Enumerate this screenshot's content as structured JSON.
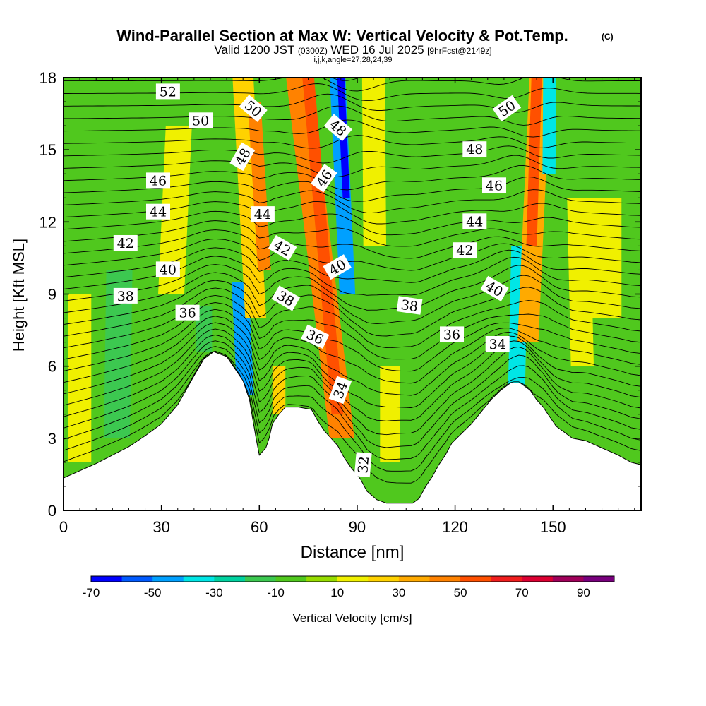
{
  "chart_data": {
    "type": "heatmap",
    "title": "Wind-Parallel Section at Max W: Vertical Velocity & Pot.Temp.",
    "title_mark": "(C)",
    "subtitle_parts": {
      "valid": "Valid 1200 JST",
      "utc": "(0300Z)",
      "date": "WED 16 Jul 2025",
      "fcst": "[9hrFcst@2149z]"
    },
    "subtitle2": "i,j,k,angle=27,28,24,39",
    "xlabel": "Distance [nm]",
    "ylabel": "Height [Kft MSL]",
    "xlim": [
      0,
      177
    ],
    "ylim": [
      0,
      18
    ],
    "x_ticks": [
      0,
      30,
      60,
      90,
      120,
      150
    ],
    "y_ticks": [
      0,
      3,
      6,
      9,
      12,
      15,
      18
    ],
    "colorbar": {
      "label": "Vertical Velocity [cm/s]",
      "range": [
        -70,
        100
      ],
      "step": 10,
      "tick_labels": [
        "-70",
        "-50",
        "-30",
        "-10",
        "10",
        "30",
        "50",
        "70",
        "90"
      ],
      "colors": [
        "#0000ff",
        "#005aff",
        "#00a0ff",
        "#00e6e6",
        "#00d2a0",
        "#3cc850",
        "#50c81e",
        "#96dc00",
        "#f0f000",
        "#ffd200",
        "#ffaa00",
        "#ff8200",
        "#ff5000",
        "#f01e1e",
        "#dc0032",
        "#a0005a",
        "#78007d"
      ]
    },
    "terrain_kft": [
      [
        0,
        1.35
      ],
      [
        5,
        1.65
      ],
      [
        10,
        1.95
      ],
      [
        15,
        2.3
      ],
      [
        20,
        2.65
      ],
      [
        25,
        3.1
      ],
      [
        30,
        3.6
      ],
      [
        35,
        4.4
      ],
      [
        40,
        5.6
      ],
      [
        43,
        6.3
      ],
      [
        46,
        6.6
      ],
      [
        50,
        6.4
      ],
      [
        52,
        6.0
      ],
      [
        55,
        5.4
      ],
      [
        57,
        4.6
      ],
      [
        58,
        3.8
      ],
      [
        59,
        3.0
      ],
      [
        60,
        2.3
      ],
      [
        62,
        2.6
      ],
      [
        63,
        3.0
      ],
      [
        64,
        3.6
      ],
      [
        66,
        4.0
      ],
      [
        68,
        4.3
      ],
      [
        72,
        4.3
      ],
      [
        76,
        4.2
      ],
      [
        78,
        3.7
      ],
      [
        80,
        3.3
      ],
      [
        82,
        3.0
      ],
      [
        84,
        2.7
      ],
      [
        86,
        2.2
      ],
      [
        88,
        1.8
      ],
      [
        91,
        1.3
      ],
      [
        93,
        0.8
      ],
      [
        96,
        0.45
      ],
      [
        99,
        0.3
      ],
      [
        103,
        0.3
      ],
      [
        107,
        0.3
      ],
      [
        109,
        0.5
      ],
      [
        111,
        1.0
      ],
      [
        113,
        1.4
      ],
      [
        115,
        1.9
      ],
      [
        117,
        2.3
      ],
      [
        119,
        2.8
      ],
      [
        122,
        3.2
      ],
      [
        125,
        3.6
      ],
      [
        128,
        4.1
      ],
      [
        131,
        4.6
      ],
      [
        134,
        5.0
      ],
      [
        137,
        5.3
      ],
      [
        140,
        5.3
      ],
      [
        143,
        5.0
      ],
      [
        145,
        4.6
      ],
      [
        147,
        4.3
      ],
      [
        149,
        3.9
      ],
      [
        151,
        3.5
      ],
      [
        153,
        3.3
      ],
      [
        156,
        3.0
      ],
      [
        160,
        2.9
      ],
      [
        165,
        2.6
      ],
      [
        170,
        2.3
      ],
      [
        174,
        2.0
      ],
      [
        177,
        1.9
      ]
    ],
    "w_bands": [
      {
        "x_bottom": 57.5,
        "x_top": 51,
        "width": 2.6,
        "value": -45,
        "y_from": 4.8,
        "y_to": 9.5
      },
      {
        "x_bottom": 62,
        "x_top": 55,
        "width": 3.2,
        "value": 28,
        "y_from": 8,
        "y_to": 18
      },
      {
        "x_bottom": 66,
        "x_top": 58,
        "width": 2.0,
        "value": 48,
        "y_from": 10,
        "y_to": 17
      },
      {
        "x_bottom": 88,
        "x_top": 72,
        "width": 3.8,
        "value": 40,
        "y_from": 3,
        "y_to": 18
      },
      {
        "x_bottom": 86.5,
        "x_top": 75,
        "width": 1.8,
        "value": 58,
        "y_from": 4,
        "y_to": 18
      },
      {
        "x_bottom": 90,
        "x_top": 84,
        "width": 2.4,
        "value": -50,
        "y_from": 9,
        "y_to": 18
      },
      {
        "x_bottom": 91,
        "x_top": 85,
        "width": 1.1,
        "value": -65,
        "y_from": 13,
        "y_to": 18
      },
      {
        "x_bottom": 96,
        "x_top": 95,
        "width": 3.5,
        "value": 18,
        "y_from": 11,
        "y_to": 18
      },
      {
        "x_bottom": 138,
        "x_top": 141,
        "width": 2.6,
        "value": -40,
        "y_from": 5,
        "y_to": 11
      },
      {
        "x_bottom": 140,
        "x_top": 146,
        "width": 3.2,
        "value": 38,
        "y_from": 7,
        "y_to": 18
      },
      {
        "x_bottom": 141,
        "x_top": 145,
        "width": 1.6,
        "value": 55,
        "y_from": 11,
        "y_to": 18
      },
      {
        "x_bottom": 148,
        "x_top": 149,
        "width": 2.0,
        "value": -40,
        "y_from": 14,
        "y_to": 18
      },
      {
        "x_bottom": 160,
        "x_top": 157,
        "width": 3.5,
        "value": 14,
        "y_from": 6,
        "y_to": 13
      },
      {
        "x_bottom": 100,
        "x_top": 100,
        "width": 3.0,
        "value": 14,
        "y_from": 2,
        "y_to": 6
      },
      {
        "x_bottom": 66,
        "x_top": 66,
        "width": 2.0,
        "value": 20,
        "y_from": 4,
        "y_to": 6
      },
      {
        "x_bottom": 43,
        "x_top": 43,
        "width": 2.5,
        "value": -20,
        "y_from": 6.6,
        "y_to": 8.5
      },
      {
        "x_bottom": 16,
        "x_top": 18,
        "width": 4.0,
        "value": -18,
        "y_from": 3,
        "y_to": 10
      },
      {
        "x_bottom": 30,
        "x_top": 36,
        "width": 4.0,
        "value": 12,
        "y_from": 9,
        "y_to": 16
      },
      {
        "x_bottom": 166,
        "x_top": 166,
        "width": 5.0,
        "value": 14,
        "y_from": 8,
        "y_to": 13
      },
      {
        "x_bottom": 5,
        "x_top": 5,
        "width": 3.5,
        "value": 12,
        "y_from": 2,
        "y_to": 9
      }
    ],
    "theta_labels": [
      {
        "text": "52",
        "x": 32,
        "y": 17.4,
        "angle": 0
      },
      {
        "text": "50",
        "x": 42,
        "y": 16.2,
        "angle": 0
      },
      {
        "text": "50",
        "x": 58,
        "y": 16.7,
        "angle": 40
      },
      {
        "text": "48",
        "x": 55,
        "y": 14.7,
        "angle": -60
      },
      {
        "text": "48",
        "x": 84,
        "y": 15.9,
        "angle": 40
      },
      {
        "text": "48",
        "x": 126,
        "y": 15.0,
        "angle": 0
      },
      {
        "text": "50",
        "x": 136,
        "y": 16.7,
        "angle": -35
      },
      {
        "text": "46",
        "x": 29,
        "y": 13.7,
        "angle": 0
      },
      {
        "text": "46",
        "x": 80,
        "y": 13.8,
        "angle": -55
      },
      {
        "text": "46",
        "x": 132,
        "y": 13.5,
        "angle": 0
      },
      {
        "text": "44",
        "x": 29,
        "y": 12.4,
        "angle": 0
      },
      {
        "text": "44",
        "x": 61,
        "y": 12.3,
        "angle": 0
      },
      {
        "text": "44",
        "x": 126,
        "y": 12.0,
        "angle": 0
      },
      {
        "text": "42",
        "x": 19,
        "y": 11.1,
        "angle": 0
      },
      {
        "text": "42",
        "x": 67,
        "y": 10.9,
        "angle": 30
      },
      {
        "text": "42",
        "x": 123,
        "y": 10.8,
        "angle": 0
      },
      {
        "text": "40",
        "x": 32,
        "y": 10.0,
        "angle": 0
      },
      {
        "text": "40",
        "x": 84,
        "y": 10.1,
        "angle": -30
      },
      {
        "text": "40",
        "x": 132,
        "y": 9.2,
        "angle": 30
      },
      {
        "text": "38",
        "x": 19,
        "y": 8.9,
        "angle": 0
      },
      {
        "text": "38",
        "x": 68,
        "y": 8.8,
        "angle": 30
      },
      {
        "text": "38",
        "x": 106,
        "y": 8.5,
        "angle": 8
      },
      {
        "text": "36",
        "x": 38,
        "y": 8.2,
        "angle": 0
      },
      {
        "text": "36",
        "x": 77,
        "y": 7.2,
        "angle": 25
      },
      {
        "text": "36",
        "x": 119,
        "y": 7.3,
        "angle": 0
      },
      {
        "text": "34",
        "x": 85,
        "y": 5.0,
        "angle": -70
      },
      {
        "text": "34",
        "x": 133,
        "y": 6.9,
        "angle": 0
      },
      {
        "text": "32",
        "x": 92,
        "y": 1.9,
        "angle": -85
      }
    ]
  }
}
